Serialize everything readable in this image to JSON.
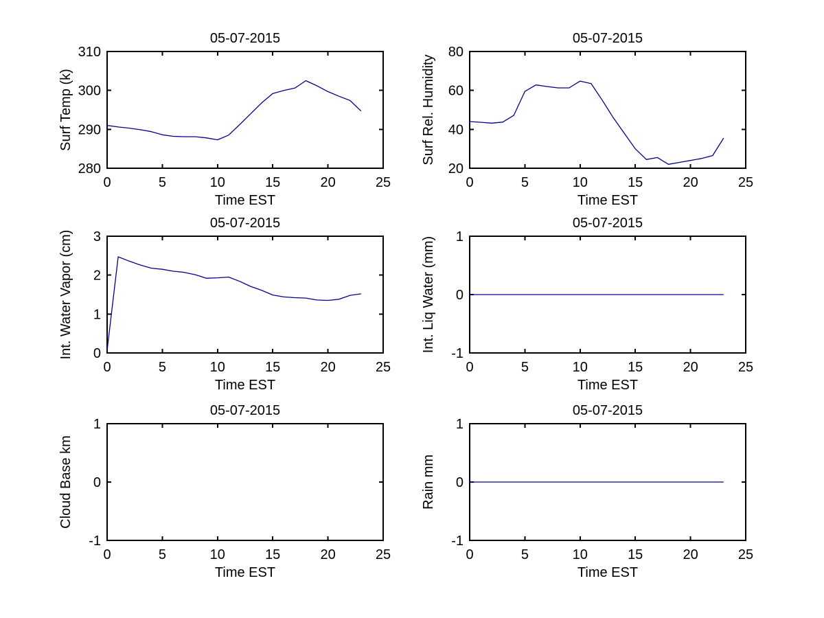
{
  "figure": {
    "background": "#ffffff",
    "line_color": "#00008B",
    "axes_color": "#000000",
    "grid": false,
    "legend": false
  },
  "chart_data": [
    {
      "id": "surf-temp",
      "type": "line",
      "title": "05-07-2015",
      "xlabel": "Time EST",
      "ylabel": "Surf Temp (k)",
      "xlim": [
        0,
        25
      ],
      "ylim": [
        280,
        310
      ],
      "xticks": [
        0,
        5,
        10,
        15,
        20,
        25
      ],
      "yticks": [
        280,
        290,
        300,
        310
      ],
      "x": [
        0,
        1,
        2,
        3,
        4,
        5,
        6,
        7,
        8,
        9,
        10,
        11,
        12,
        13,
        14,
        15,
        16,
        17,
        18,
        19,
        20,
        21,
        22,
        23
      ],
      "y": [
        291,
        290.6,
        290.3,
        289.9,
        289.4,
        288.6,
        288.2,
        288.1,
        288.1,
        287.8,
        287.3,
        288.5,
        291.2,
        294,
        296.8,
        299.2,
        300,
        300.6,
        302.5,
        301.2,
        299.7,
        298.5,
        297.4,
        294.7
      ]
    },
    {
      "id": "surf-rel-humidity",
      "type": "line",
      "title": "05-07-2015",
      "xlabel": "Time EST",
      "ylabel": "Surf Rel. Humidity",
      "xlim": [
        0,
        25
      ],
      "ylim": [
        20,
        80
      ],
      "xticks": [
        0,
        5,
        10,
        15,
        20,
        25
      ],
      "yticks": [
        20,
        40,
        60,
        80
      ],
      "x": [
        0,
        1,
        2,
        3,
        4,
        5,
        6,
        7,
        8,
        9,
        10,
        11,
        12,
        13,
        14,
        15,
        16,
        17,
        18,
        19,
        20,
        21,
        22,
        23
      ],
      "y": [
        44,
        43.6,
        43.2,
        43.7,
        47.2,
        59.5,
        62.8,
        62,
        61.3,
        61.3,
        64.8,
        63.5,
        55,
        46,
        38,
        30,
        24.5,
        25.5,
        22,
        23,
        24,
        25,
        26.5,
        35.5
      ]
    },
    {
      "id": "int-water-vapor",
      "type": "line",
      "title": "05-07-2015",
      "xlabel": "Time EST",
      "ylabel": "Int. Water Vapor (cm)",
      "xlim": [
        0,
        25
      ],
      "ylim": [
        0,
        3
      ],
      "xticks": [
        0,
        5,
        10,
        15,
        20,
        25
      ],
      "yticks": [
        0,
        1,
        2,
        3
      ],
      "x": [
        0,
        1,
        2,
        3,
        4,
        5,
        6,
        7,
        8,
        9,
        10,
        11,
        12,
        13,
        14,
        15,
        16,
        17,
        18,
        19,
        20,
        21,
        22,
        23
      ],
      "y": [
        0.07,
        2.47,
        2.36,
        2.26,
        2.18,
        2.15,
        2.1,
        2.07,
        2.01,
        1.92,
        1.93,
        1.95,
        1.84,
        1.71,
        1.61,
        1.49,
        1.44,
        1.42,
        1.41,
        1.36,
        1.35,
        1.38,
        1.48,
        1.52
      ]
    },
    {
      "id": "int-liq-water",
      "type": "line",
      "title": "05-07-2015",
      "xlabel": "Time EST",
      "ylabel": "Int. Liq Water (mm)",
      "xlim": [
        0,
        25
      ],
      "ylim": [
        -1,
        1
      ],
      "xticks": [
        0,
        5,
        10,
        15,
        20,
        25
      ],
      "yticks": [
        -1,
        0,
        1
      ],
      "x": [
        0,
        1,
        2,
        3,
        4,
        5,
        6,
        7,
        8,
        9,
        10,
        11,
        12,
        13,
        14,
        15,
        16,
        17,
        18,
        19,
        20,
        21,
        22,
        23
      ],
      "y": [
        0,
        0,
        0,
        0,
        0,
        0,
        0,
        0,
        0,
        0,
        0,
        0,
        0,
        0,
        0,
        0,
        0,
        0,
        0,
        0,
        0,
        0,
        0,
        0
      ]
    },
    {
      "id": "cloud-base",
      "type": "line",
      "title": "05-07-2015",
      "xlabel": "Time EST",
      "ylabel": "Cloud Base km",
      "xlim": [
        0,
        25
      ],
      "ylim": [
        -1,
        1
      ],
      "xticks": [
        0,
        5,
        10,
        15,
        20,
        25
      ],
      "yticks": [
        -1,
        0,
        1
      ],
      "x": [],
      "y": []
    },
    {
      "id": "rain",
      "type": "line",
      "title": "05-07-2015",
      "xlabel": "Time EST",
      "ylabel": "Rain mm",
      "xlim": [
        0,
        25
      ],
      "ylim": [
        -1,
        1
      ],
      "xticks": [
        0,
        5,
        10,
        15,
        20,
        25
      ],
      "yticks": [
        -1,
        0,
        1
      ],
      "x": [
        0,
        1,
        2,
        3,
        4,
        5,
        6,
        7,
        8,
        9,
        10,
        11,
        12,
        13,
        14,
        15,
        16,
        17,
        18,
        19,
        20,
        21,
        22,
        23
      ],
      "y": [
        0,
        0,
        0,
        0,
        0,
        0,
        0,
        0,
        0,
        0,
        0,
        0,
        0,
        0,
        0,
        0,
        0,
        0,
        0,
        0,
        0,
        0,
        0,
        0
      ]
    }
  ]
}
